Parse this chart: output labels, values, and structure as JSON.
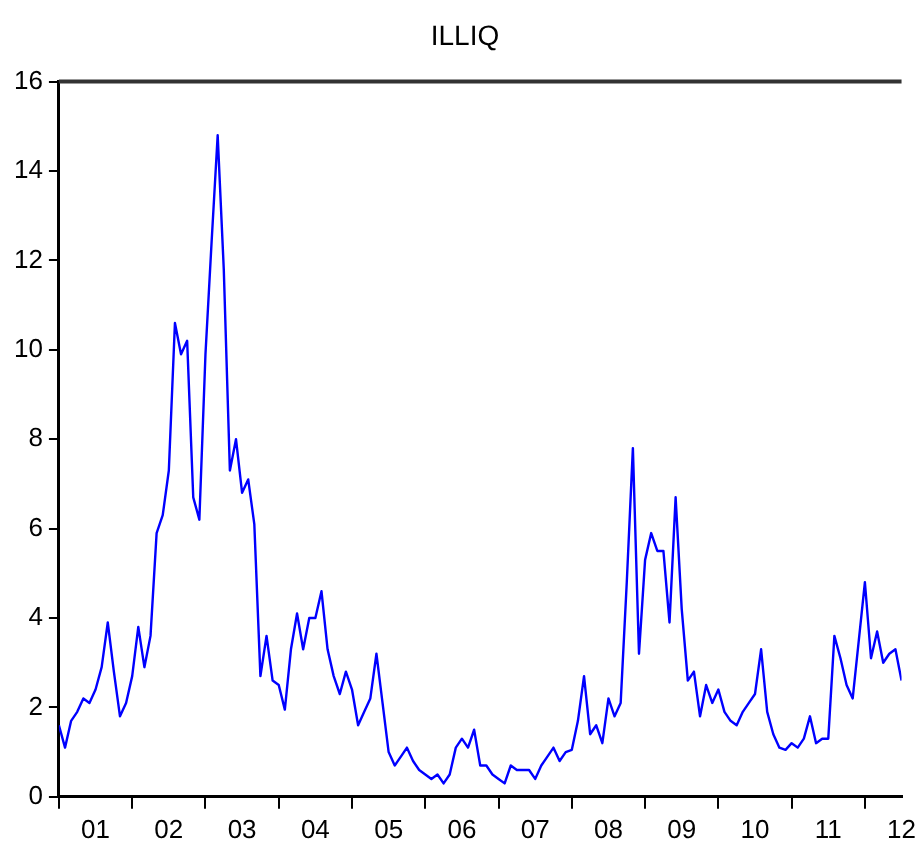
{
  "chart_data": {
    "type": "line",
    "title": "ILLIQ",
    "x": [
      "2001-01",
      "2001-02",
      "2001-03",
      "2001-04",
      "2001-05",
      "2001-06",
      "2001-07",
      "2001-08",
      "2001-09",
      "2001-10",
      "2001-11",
      "2001-12",
      "2002-01",
      "2002-02",
      "2002-03",
      "2002-04",
      "2002-05",
      "2002-06",
      "2002-07",
      "2002-08",
      "2002-09",
      "2002-10",
      "2002-11",
      "2002-12",
      "2003-01",
      "2003-02",
      "2003-03",
      "2003-04",
      "2003-05",
      "2003-06",
      "2003-07",
      "2003-08",
      "2003-09",
      "2003-10",
      "2003-11",
      "2003-12",
      "2004-01",
      "2004-02",
      "2004-03",
      "2004-04",
      "2004-05",
      "2004-06",
      "2004-07",
      "2004-08",
      "2004-09",
      "2004-10",
      "2004-11",
      "2004-12",
      "2005-01",
      "2005-02",
      "2005-03",
      "2005-04",
      "2005-05",
      "2005-06",
      "2005-07",
      "2005-08",
      "2005-09",
      "2005-10",
      "2005-11",
      "2005-12",
      "2006-01",
      "2006-02",
      "2006-03",
      "2006-04",
      "2006-05",
      "2006-06",
      "2006-07",
      "2006-08",
      "2006-09",
      "2006-10",
      "2006-11",
      "2006-12",
      "2007-01",
      "2007-02",
      "2007-03",
      "2007-04",
      "2007-05",
      "2007-06",
      "2007-07",
      "2007-08",
      "2007-09",
      "2007-10",
      "2007-11",
      "2007-12",
      "2008-01",
      "2008-02",
      "2008-03",
      "2008-04",
      "2008-05",
      "2008-06",
      "2008-07",
      "2008-08",
      "2008-09",
      "2008-10",
      "2008-11",
      "2008-12",
      "2009-01",
      "2009-02",
      "2009-03",
      "2009-04",
      "2009-05",
      "2009-06",
      "2009-07",
      "2009-08",
      "2009-09",
      "2009-10",
      "2009-11",
      "2009-12",
      "2010-01",
      "2010-02",
      "2010-03",
      "2010-04",
      "2010-05",
      "2010-06",
      "2010-07",
      "2010-08",
      "2010-09",
      "2010-10",
      "2010-11",
      "2010-12",
      "2011-01",
      "2011-02",
      "2011-03",
      "2011-04",
      "2011-05",
      "2011-06",
      "2011-07",
      "2011-08",
      "2011-09",
      "2011-10",
      "2011-11",
      "2011-12",
      "2012-01",
      "2012-02",
      "2012-03",
      "2012-04",
      "2012-05",
      "2012-06",
      "2012-07"
    ],
    "series": [
      {
        "color": "#0000ff",
        "values": [
          1.6,
          1.1,
          1.7,
          1.9,
          2.2,
          2.1,
          2.4,
          2.9,
          3.9,
          2.8,
          1.8,
          2.1,
          2.7,
          3.8,
          2.9,
          3.6,
          5.9,
          6.3,
          7.3,
          10.6,
          9.9,
          10.2,
          6.7,
          6.2,
          9.9,
          12.4,
          14.8,
          11.8,
          7.3,
          8.0,
          6.8,
          7.1,
          6.1,
          2.7,
          3.6,
          2.6,
          2.5,
          1.95,
          3.3,
          4.1,
          3.3,
          4.0,
          4.0,
          4.6,
          3.3,
          2.7,
          2.3,
          2.8,
          2.4,
          1.6,
          1.9,
          2.2,
          3.2,
          2.1,
          1.0,
          0.7,
          0.9,
          1.1,
          0.8,
          0.6,
          0.5,
          0.4,
          0.5,
          0.3,
          0.5,
          1.1,
          1.3,
          1.1,
          1.5,
          0.7,
          0.7,
          0.5,
          0.4,
          0.3,
          0.7,
          0.6,
          0.6,
          0.6,
          0.4,
          0.7,
          0.9,
          1.1,
          0.8,
          1.0,
          1.05,
          1.7,
          2.7,
          1.4,
          1.6,
          1.2,
          2.2,
          1.8,
          2.1,
          4.8,
          7.8,
          3.2,
          5.3,
          5.9,
          5.5,
          5.5,
          3.9,
          6.7,
          4.2,
          2.6,
          2.8,
          1.8,
          2.5,
          2.1,
          2.4,
          1.9,
          1.7,
          1.6,
          1.9,
          2.1,
          2.3,
          3.3,
          1.9,
          1.4,
          1.1,
          1.05,
          1.2,
          1.1,
          1.3,
          1.8,
          1.2,
          1.3,
          1.3,
          3.6,
          3.1,
          2.5,
          2.2,
          3.5,
          4.8,
          3.1,
          3.7,
          3.0,
          3.2,
          3.3,
          2.6
        ]
      }
    ],
    "xlim": [
      "2001-01",
      "2012-07"
    ],
    "xticks": [
      {
        "value": "2001-01",
        "label": null
      },
      {
        "value": "2001-07",
        "label": "01"
      },
      {
        "value": "2002-01",
        "label": null
      },
      {
        "value": "2002-07",
        "label": "02"
      },
      {
        "value": "2003-01",
        "label": null
      },
      {
        "value": "2003-07",
        "label": "03"
      },
      {
        "value": "2004-01",
        "label": null
      },
      {
        "value": "2004-07",
        "label": "04"
      },
      {
        "value": "2005-01",
        "label": null
      },
      {
        "value": "2005-07",
        "label": "05"
      },
      {
        "value": "2006-01",
        "label": null
      },
      {
        "value": "2006-07",
        "label": "06"
      },
      {
        "value": "2007-01",
        "label": null
      },
      {
        "value": "2007-07",
        "label": "07"
      },
      {
        "value": "2008-01",
        "label": null
      },
      {
        "value": "2008-07",
        "label": "08"
      },
      {
        "value": "2009-01",
        "label": null
      },
      {
        "value": "2009-07",
        "label": "09"
      },
      {
        "value": "2010-01",
        "label": null
      },
      {
        "value": "2010-07",
        "label": "10"
      },
      {
        "value": "2011-01",
        "label": null
      },
      {
        "value": "2011-07",
        "label": "11"
      },
      {
        "value": "2012-01",
        "label": null
      },
      {
        "value": "2012-07",
        "label": "12"
      }
    ],
    "ylim": [
      0,
      16
    ],
    "yticks": [
      0,
      2,
      4,
      6,
      8,
      10,
      12,
      14,
      16
    ],
    "grid": false,
    "legend": false,
    "marker": "none",
    "line_style": "solid"
  }
}
